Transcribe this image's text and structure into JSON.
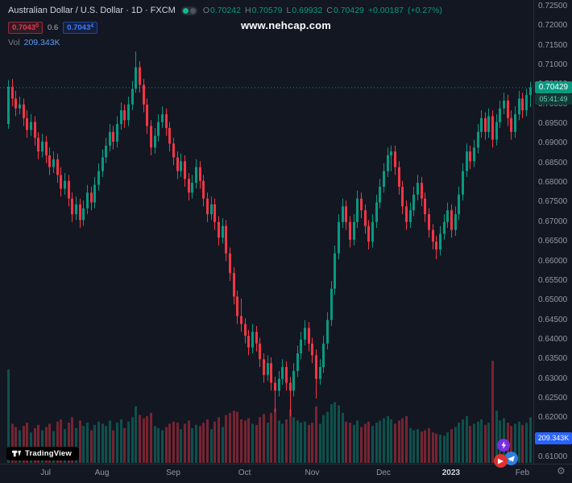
{
  "watermark": {
    "text": "www.nehcap.com"
  },
  "legend": {
    "title": "Australian Dollar / U.S. Dollar · 1D · FXCM",
    "o_label": "O",
    "o_value": "0.70242",
    "h_label": "H",
    "h_value": "0.70579",
    "l_label": "L",
    "l_value": "0.69932",
    "c_label": "C",
    "c_value": "0.70429",
    "change": "+0.00187",
    "change_pct": "(+0.27%)",
    "sell_price": "0.7043",
    "sell_sup": "0",
    "spread": "0.6",
    "buy_price": "0.7043",
    "buy_sup": "4",
    "vol_label": "Vol",
    "vol_value": "209.343K"
  },
  "price_axis": {
    "labels": [
      "0.72500",
      "0.72000",
      "0.71500",
      "0.71000",
      "0.70500",
      "0.70000",
      "0.69500",
      "0.69000",
      "0.68500",
      "0.68000",
      "0.67500",
      "0.67000",
      "0.66500",
      "0.66000",
      "0.65500",
      "0.65000",
      "0.64500",
      "0.64000",
      "0.63500",
      "0.63000",
      "0.62500",
      "0.62000",
      "0.61000"
    ],
    "price_badge": "0.70429",
    "countdown": "05:41:49",
    "volume_badge": "209.343K"
  },
  "footer": {
    "tradingview": "TradingView"
  },
  "colors": {
    "background": "#131722",
    "up": "#089981",
    "down": "#f23645",
    "axis_text": "#9598a1",
    "volume_badge_bg": "#2962ff"
  },
  "chart_data": {
    "type": "candlestick",
    "title": "Australian Dollar / U.S. Dollar",
    "interval": "1D",
    "exchange": "FXCM",
    "volume_indicator": "Vol",
    "y_axis": {
      "min": 0.61,
      "max": 0.725,
      "tick_step": 0.005
    },
    "x_ticks": [
      {
        "label": "Jul",
        "i": 10
      },
      {
        "label": "Aug",
        "i": 25
      },
      {
        "label": "Sep",
        "i": 44
      },
      {
        "label": "Oct",
        "i": 63
      },
      {
        "label": "Nov",
        "i": 81
      },
      {
        "label": "Dec",
        "i": 100
      },
      {
        "label": "2023",
        "i": 118,
        "year": true
      },
      {
        "label": "Feb",
        "i": 137
      }
    ],
    "last": {
      "open": 0.70242,
      "high": 0.70579,
      "low": 0.69932,
      "close": 0.70429,
      "change": 0.00187,
      "change_pct": 0.27,
      "volume_k": 209.343
    },
    "candles": [
      [
        0.695,
        0.7062,
        0.6938,
        0.7045,
        430
      ],
      [
        0.7045,
        0.7065,
        0.6995,
        0.7015,
        180
      ],
      [
        0.7015,
        0.7035,
        0.697,
        0.699,
        165
      ],
      [
        0.699,
        0.702,
        0.6975,
        0.7,
        150
      ],
      [
        0.7,
        0.7015,
        0.6945,
        0.6965,
        170
      ],
      [
        0.6965,
        0.6985,
        0.6915,
        0.6935,
        185
      ],
      [
        0.6935,
        0.6975,
        0.692,
        0.6955,
        140
      ],
      [
        0.6955,
        0.697,
        0.6895,
        0.6915,
        160
      ],
      [
        0.6915,
        0.693,
        0.686,
        0.688,
        175
      ],
      [
        0.688,
        0.6925,
        0.6865,
        0.6905,
        150
      ],
      [
        0.6905,
        0.692,
        0.685,
        0.687,
        165
      ],
      [
        0.687,
        0.689,
        0.682,
        0.684,
        180
      ],
      [
        0.684,
        0.688,
        0.6825,
        0.686,
        145
      ],
      [
        0.686,
        0.6875,
        0.68,
        0.682,
        190
      ],
      [
        0.682,
        0.684,
        0.6765,
        0.6785,
        200
      ],
      [
        0.6785,
        0.6825,
        0.677,
        0.6805,
        155
      ],
      [
        0.6805,
        0.682,
        0.674,
        0.676,
        185
      ],
      [
        0.676,
        0.6775,
        0.67,
        0.672,
        210
      ],
      [
        0.672,
        0.6765,
        0.6705,
        0.6745,
        160
      ],
      [
        0.6745,
        0.676,
        0.6685,
        0.6705,
        195
      ],
      [
        0.6705,
        0.6755,
        0.669,
        0.6735,
        170
      ],
      [
        0.6735,
        0.6795,
        0.672,
        0.6775,
        185
      ],
      [
        0.6775,
        0.679,
        0.673,
        0.675,
        150
      ],
      [
        0.675,
        0.6815,
        0.6735,
        0.6795,
        175
      ],
      [
        0.6795,
        0.685,
        0.678,
        0.683,
        190
      ],
      [
        0.683,
        0.6885,
        0.6815,
        0.6865,
        180
      ],
      [
        0.6865,
        0.6915,
        0.685,
        0.6895,
        170
      ],
      [
        0.6895,
        0.695,
        0.688,
        0.693,
        195
      ],
      [
        0.693,
        0.6945,
        0.6885,
        0.6905,
        150
      ],
      [
        0.6905,
        0.697,
        0.689,
        0.695,
        185
      ],
      [
        0.695,
        0.7005,
        0.6935,
        0.6985,
        200
      ],
      [
        0.6985,
        0.7,
        0.694,
        0.696,
        160
      ],
      [
        0.696,
        0.702,
        0.6945,
        0.7,
        190
      ],
      [
        0.7,
        0.706,
        0.6985,
        0.704,
        210
      ],
      [
        0.704,
        0.7135,
        0.703,
        0.7095,
        260
      ],
      [
        0.7095,
        0.711,
        0.703,
        0.705,
        220
      ],
      [
        0.705,
        0.7065,
        0.698,
        0.7,
        205
      ],
      [
        0.7,
        0.7015,
        0.6925,
        0.6945,
        215
      ],
      [
        0.6945,
        0.696,
        0.687,
        0.689,
        230
      ],
      [
        0.689,
        0.694,
        0.6875,
        0.692,
        170
      ],
      [
        0.692,
        0.6975,
        0.6905,
        0.6955,
        160
      ],
      [
        0.6955,
        0.6995,
        0.694,
        0.6975,
        150
      ],
      [
        0.6975,
        0.699,
        0.692,
        0.694,
        165
      ],
      [
        0.694,
        0.6955,
        0.688,
        0.69,
        180
      ],
      [
        0.69,
        0.6915,
        0.6845,
        0.6865,
        190
      ],
      [
        0.6865,
        0.688,
        0.681,
        0.683,
        185
      ],
      [
        0.683,
        0.6875,
        0.6815,
        0.6855,
        155
      ],
      [
        0.6855,
        0.687,
        0.679,
        0.681,
        180
      ],
      [
        0.681,
        0.6825,
        0.6755,
        0.6775,
        195
      ],
      [
        0.6775,
        0.682,
        0.676,
        0.68,
        160
      ],
      [
        0.68,
        0.686,
        0.6785,
        0.684,
        175
      ],
      [
        0.684,
        0.6855,
        0.6785,
        0.6805,
        170
      ],
      [
        0.6805,
        0.682,
        0.674,
        0.676,
        185
      ],
      [
        0.676,
        0.6775,
        0.67,
        0.672,
        200
      ],
      [
        0.672,
        0.6765,
        0.6705,
        0.6745,
        155
      ],
      [
        0.6745,
        0.676,
        0.668,
        0.67,
        190
      ],
      [
        0.67,
        0.6715,
        0.664,
        0.666,
        210
      ],
      [
        0.666,
        0.671,
        0.6645,
        0.669,
        165
      ],
      [
        0.669,
        0.6705,
        0.66,
        0.662,
        220
      ],
      [
        0.662,
        0.6635,
        0.655,
        0.657,
        230
      ],
      [
        0.657,
        0.6585,
        0.649,
        0.651,
        240
      ],
      [
        0.651,
        0.6525,
        0.644,
        0.646,
        235
      ],
      [
        0.646,
        0.6505,
        0.642,
        0.644,
        200
      ],
      [
        0.644,
        0.6455,
        0.639,
        0.641,
        195
      ],
      [
        0.641,
        0.6425,
        0.636,
        0.638,
        205
      ],
      [
        0.638,
        0.644,
        0.6365,
        0.642,
        180
      ],
      [
        0.642,
        0.6435,
        0.637,
        0.639,
        175
      ],
      [
        0.639,
        0.6405,
        0.633,
        0.635,
        210
      ],
      [
        0.635,
        0.6365,
        0.629,
        0.631,
        225
      ],
      [
        0.631,
        0.636,
        0.6295,
        0.634,
        185
      ],
      [
        0.634,
        0.6355,
        0.627,
        0.629,
        230
      ],
      [
        0.629,
        0.6305,
        0.6215,
        0.627,
        250
      ],
      [
        0.627,
        0.632,
        0.6255,
        0.63,
        195
      ],
      [
        0.63,
        0.635,
        0.6285,
        0.633,
        180
      ],
      [
        0.633,
        0.6345,
        0.627,
        0.629,
        200
      ],
      [
        0.629,
        0.6305,
        0.6205,
        0.627,
        245
      ],
      [
        0.627,
        0.634,
        0.6255,
        0.632,
        210
      ],
      [
        0.632,
        0.6385,
        0.6305,
        0.6365,
        195
      ],
      [
        0.6365,
        0.642,
        0.635,
        0.64,
        185
      ],
      [
        0.64,
        0.645,
        0.6385,
        0.643,
        190
      ],
      [
        0.643,
        0.6445,
        0.637,
        0.639,
        175
      ],
      [
        0.639,
        0.6405,
        0.634,
        0.636,
        185
      ],
      [
        0.636,
        0.6375,
        0.625,
        0.63,
        260
      ],
      [
        0.63,
        0.635,
        0.6285,
        0.633,
        180
      ],
      [
        0.633,
        0.641,
        0.6315,
        0.639,
        220
      ],
      [
        0.639,
        0.647,
        0.6375,
        0.645,
        235
      ],
      [
        0.645,
        0.655,
        0.6435,
        0.653,
        270
      ],
      [
        0.653,
        0.664,
        0.6515,
        0.662,
        280
      ],
      [
        0.662,
        0.672,
        0.6605,
        0.67,
        265
      ],
      [
        0.67,
        0.676,
        0.6685,
        0.674,
        230
      ],
      [
        0.674,
        0.6755,
        0.668,
        0.67,
        190
      ],
      [
        0.67,
        0.6715,
        0.6635,
        0.6655,
        185
      ],
      [
        0.6655,
        0.672,
        0.664,
        0.67,
        175
      ],
      [
        0.67,
        0.678,
        0.6685,
        0.676,
        195
      ],
      [
        0.676,
        0.6775,
        0.671,
        0.673,
        165
      ],
      [
        0.673,
        0.6745,
        0.667,
        0.669,
        180
      ],
      [
        0.669,
        0.6705,
        0.663,
        0.665,
        190
      ],
      [
        0.665,
        0.672,
        0.6635,
        0.67,
        170
      ],
      [
        0.67,
        0.677,
        0.6685,
        0.675,
        185
      ],
      [
        0.675,
        0.681,
        0.6735,
        0.679,
        195
      ],
      [
        0.679,
        0.685,
        0.6775,
        0.683,
        205
      ],
      [
        0.683,
        0.689,
        0.6815,
        0.687,
        215
      ],
      [
        0.687,
        0.6895,
        0.683,
        0.688,
        200
      ],
      [
        0.688,
        0.6895,
        0.682,
        0.684,
        180
      ],
      [
        0.684,
        0.6855,
        0.677,
        0.679,
        195
      ],
      [
        0.679,
        0.6805,
        0.672,
        0.674,
        205
      ],
      [
        0.674,
        0.6755,
        0.668,
        0.67,
        215
      ],
      [
        0.67,
        0.675,
        0.6685,
        0.673,
        160
      ],
      [
        0.673,
        0.679,
        0.6715,
        0.677,
        150
      ],
      [
        0.677,
        0.682,
        0.6755,
        0.68,
        155
      ],
      [
        0.68,
        0.6815,
        0.674,
        0.676,
        145
      ],
      [
        0.676,
        0.6775,
        0.67,
        0.672,
        150
      ],
      [
        0.672,
        0.6735,
        0.666,
        0.668,
        160
      ],
      [
        0.668,
        0.6695,
        0.663,
        0.665,
        140
      ],
      [
        0.665,
        0.6665,
        0.6605,
        0.663,
        135
      ],
      [
        0.663,
        0.669,
        0.6615,
        0.667,
        130
      ],
      [
        0.667,
        0.672,
        0.6655,
        0.67,
        125
      ],
      [
        0.67,
        0.675,
        0.6685,
        0.673,
        140
      ],
      [
        0.673,
        0.6745,
        0.666,
        0.668,
        155
      ],
      [
        0.668,
        0.674,
        0.6665,
        0.672,
        165
      ],
      [
        0.672,
        0.679,
        0.6705,
        0.677,
        185
      ],
      [
        0.677,
        0.685,
        0.6755,
        0.683,
        200
      ],
      [
        0.683,
        0.69,
        0.6815,
        0.688,
        215
      ],
      [
        0.688,
        0.6895,
        0.6835,
        0.6855,
        170
      ],
      [
        0.6855,
        0.691,
        0.684,
        0.689,
        180
      ],
      [
        0.689,
        0.695,
        0.6875,
        0.693,
        190
      ],
      [
        0.693,
        0.6985,
        0.6915,
        0.6965,
        200
      ],
      [
        0.6965,
        0.698,
        0.691,
        0.693,
        175
      ],
      [
        0.693,
        0.699,
        0.6915,
        0.697,
        185
      ],
      [
        0.697,
        0.6985,
        0.689,
        0.691,
        470
      ],
      [
        0.691,
        0.6975,
        0.6895,
        0.6955,
        240
      ],
      [
        0.6955,
        0.701,
        0.694,
        0.699,
        195
      ],
      [
        0.699,
        0.703,
        0.6975,
        0.701,
        205
      ],
      [
        0.701,
        0.7025,
        0.6945,
        0.6965,
        185
      ],
      [
        0.6965,
        0.6985,
        0.691,
        0.693,
        170
      ],
      [
        0.693,
        0.6995,
        0.6915,
        0.6975,
        180
      ],
      [
        0.6975,
        0.7035,
        0.696,
        0.7015,
        190
      ],
      [
        0.7015,
        0.703,
        0.6965,
        0.6985,
        175
      ],
      [
        0.6985,
        0.704,
        0.697,
        0.7024,
        185
      ],
      [
        0.70242,
        0.70579,
        0.69932,
        0.70429,
        209.343
      ]
    ]
  }
}
